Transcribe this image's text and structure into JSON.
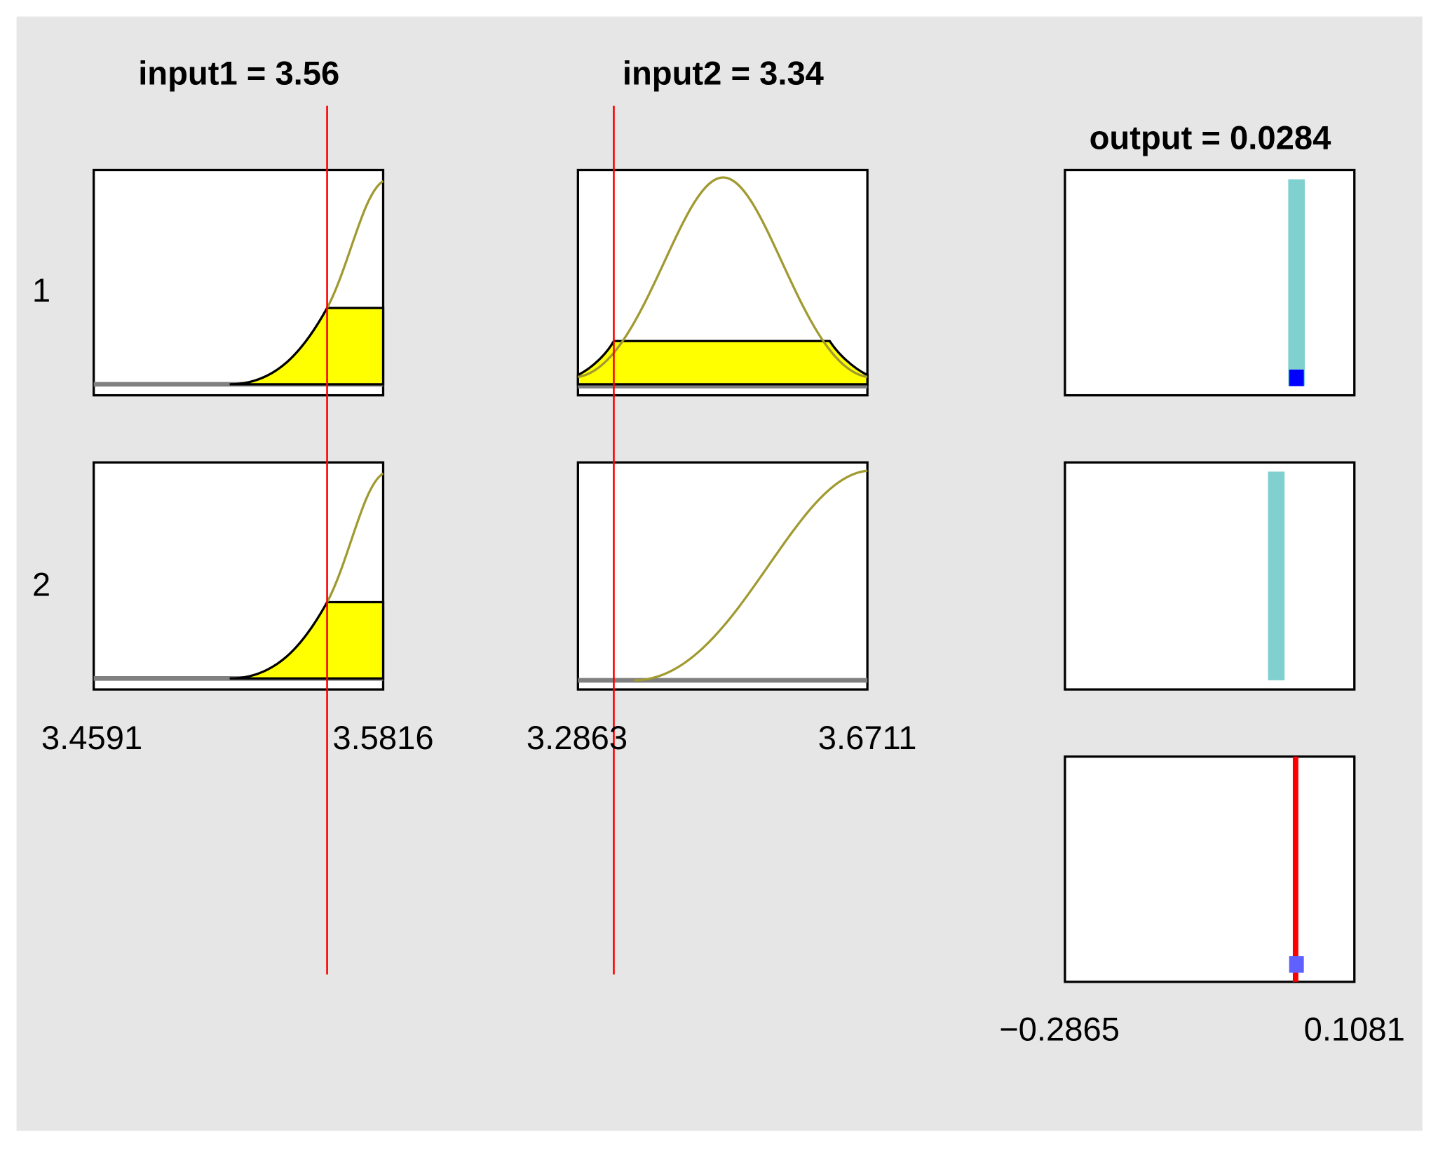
{
  "inputs": [
    {
      "title": "input1 = 3.56",
      "range_min": "3.4591",
      "range_max": "3.5816"
    },
    {
      "title": "input2 = 3.34",
      "range_min": "3.2863",
      "range_max": "3.6711"
    }
  ],
  "output": {
    "title": "output = 0.0284",
    "range_min": "−0.2865",
    "range_max": "0.1081"
  },
  "rules": [
    "1",
    "2"
  ]
}
